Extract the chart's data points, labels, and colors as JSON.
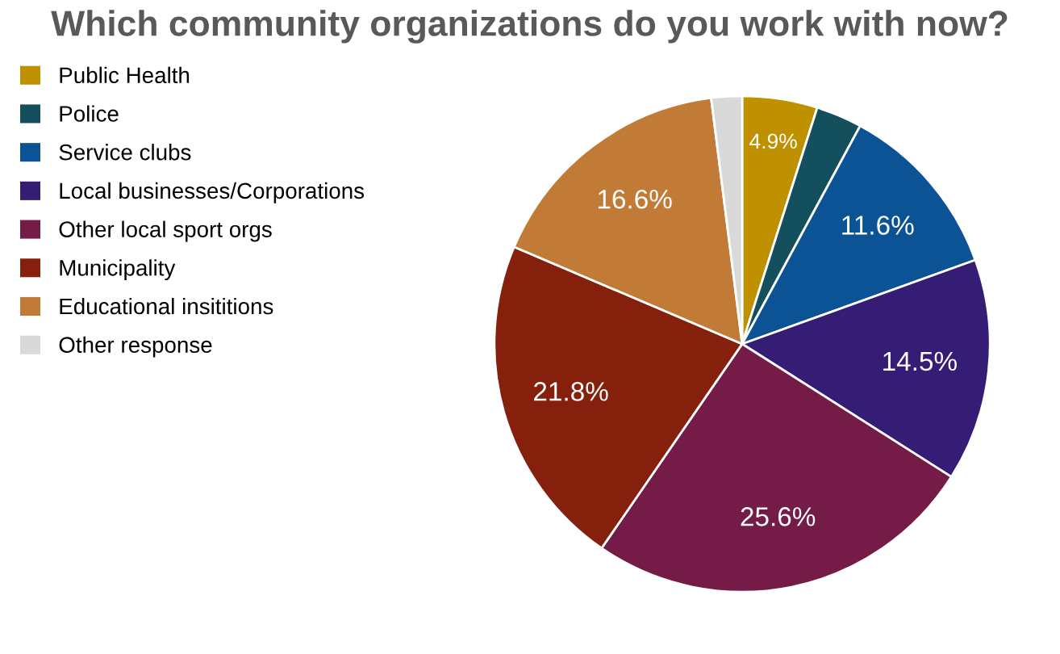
{
  "chart_data": {
    "type": "pie",
    "title": "Which community organizations do you work with now?",
    "categories": [
      "Public Health",
      "Police",
      "Service clubs",
      "Local businesses/Corporations",
      "Other local sport orgs",
      "Municipality",
      "Educational insititions",
      "Other response"
    ],
    "values": [
      4.9,
      3.0,
      11.6,
      14.5,
      25.6,
      21.8,
      16.6,
      2.0
    ],
    "colors": [
      "#bf9000",
      "#134f5c",
      "#0b5394",
      "#351c75",
      "#741b47",
      "#85200c",
      "#c27b36",
      "#d9d9d9"
    ],
    "value_labels": [
      "4.9%",
      null,
      "11.6%",
      "14.5%",
      "25.6%",
      "21.8%",
      "16.6%",
      null
    ],
    "legend": "left"
  }
}
